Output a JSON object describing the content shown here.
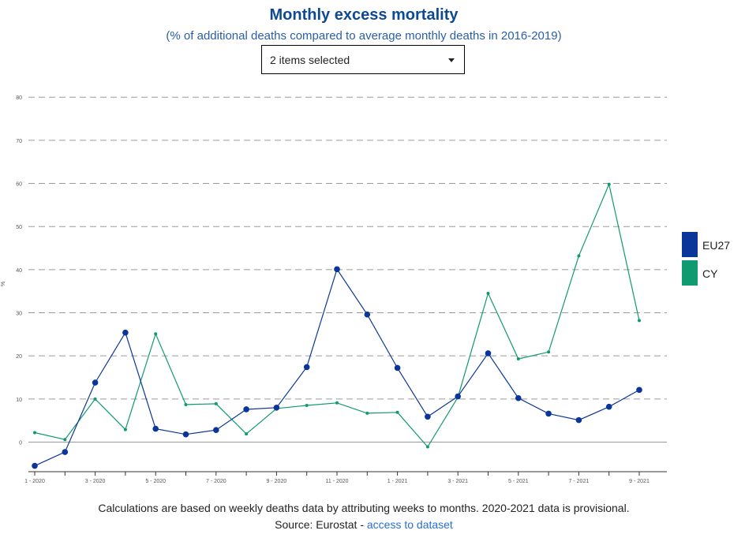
{
  "header": {
    "title": "Monthly excess mortality",
    "subtitle": "(% of additional deaths compared to average monthly deaths in 2016-2019)"
  },
  "selector": {
    "value": "2 items selected"
  },
  "legend": [
    {
      "label": "EU27",
      "color": "#0b3699"
    },
    {
      "label": "CY",
      "color": "#0f9a70"
    }
  ],
  "footer": {
    "note": "Calculations are based on weekly deaths data by attributing weeks to months. 2020-2021 data is provisional.",
    "source_prefix": "Source: Eurostat - ",
    "source_link": "access to dataset"
  },
  "chart_data": {
    "type": "line",
    "ylabel": "%",
    "ylim": [
      -7,
      80
    ],
    "yticks": [
      0,
      10,
      20,
      30,
      40,
      50,
      60,
      70,
      80
    ],
    "grid": true,
    "legend_position": "right",
    "categories": [
      "1 - 2020",
      "2 - 2020",
      "3 - 2020",
      "4 - 2020",
      "5 - 2020",
      "6 - 2020",
      "7 - 2020",
      "8 - 2020",
      "9 - 2020",
      "10 - 2020",
      "11 - 2020",
      "12 - 2020",
      "1 - 2021",
      "2 - 2021",
      "3 - 2021",
      "4 - 2021",
      "5 - 2021",
      "6 - 2021",
      "7 - 2021",
      "8 - 2021",
      "9 - 2021"
    ],
    "xtick_labels": [
      "1 - 2020",
      "",
      "3 - 2020",
      "",
      "5 - 2020",
      "",
      "7 - 2020",
      "",
      "9 - 2020",
      "",
      "11 - 2020",
      "",
      "1 - 2021",
      "",
      "3 - 2021",
      "",
      "5 - 2021",
      "",
      "7 - 2021",
      "",
      "9 - 2021"
    ],
    "series": [
      {
        "name": "EU27",
        "color": "#0b3699",
        "values": [
          -5.5,
          -2.3,
          13.8,
          25.4,
          3.1,
          1.8,
          2.8,
          7.6,
          8.0,
          17.4,
          40.1,
          29.6,
          17.2,
          5.9,
          10.6,
          20.6,
          10.2,
          6.6,
          5.1,
          8.2,
          12.1
        ]
      },
      {
        "name": "CY",
        "color": "#0f9a70",
        "values": [
          2.2,
          0.6,
          10.0,
          2.9,
          25.1,
          8.7,
          8.9,
          1.9,
          7.8,
          8.5,
          9.1,
          6.7,
          6.9,
          -1.1,
          10.4,
          34.5,
          19.3,
          20.9,
          43.2,
          59.8,
          28.2
        ]
      }
    ]
  }
}
